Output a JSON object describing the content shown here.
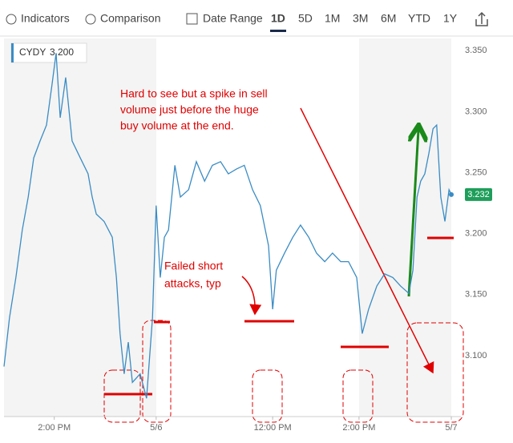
{
  "toolbar": {
    "items": [
      "Indicators",
      "Comparison",
      "Date Range",
      "1D",
      "5D",
      "1M",
      "3M",
      "6M",
      "YTD",
      "1Y"
    ]
  },
  "chart_data": {
    "type": "line",
    "legend": {
      "ticker": "CYDY",
      "price": "3.200"
    },
    "x": [
      0,
      1.2,
      2.6,
      4,
      5.3,
      6.5,
      7.9,
      9.3,
      10.5,
      11.4,
      12.3,
      13.5,
      14.9,
      16.7,
      18.4,
      19.3,
      20.2,
      21.9,
      23.7,
      24.6,
      25.4,
      26.3,
      27.2,
      28.1,
      29.8,
      31.2,
      32.5,
      33.3,
      34.2,
      35.1,
      36,
      37.4,
      38.6,
      40.4,
      42.1,
      43.9,
      45.6,
      47.4,
      49.1,
      50.9,
      52.6,
      54.4,
      56.1,
      57.9,
      58.8,
      59.6,
      61.4,
      63.2,
      64.9,
      66.7,
      68.4,
      70.2,
      71.9,
      73.7,
      75.4,
      77.2,
      78.4,
      79.8,
      81.6,
      83.3,
      85.1,
      86.8,
      88.6,
      89.5,
      90.4,
      91.2,
      92.1,
      93,
      93.9,
      94.7,
      95.6,
      96.5,
      97.4,
      97.9
    ],
    "series": [
      {
        "name": "CYDY",
        "color": "#3a8cc4",
        "values": [
          3.091,
          3.131,
          3.164,
          3.203,
          3.23,
          3.262,
          3.276,
          3.289,
          3.322,
          3.348,
          3.295,
          3.328,
          3.276,
          3.262,
          3.249,
          3.23,
          3.216,
          3.21,
          3.197,
          3.164,
          3.118,
          3.085,
          3.111,
          3.078,
          3.085,
          3.065,
          3.131,
          3.223,
          3.164,
          3.197,
          3.203,
          3.256,
          3.23,
          3.236,
          3.259,
          3.243,
          3.256,
          3.259,
          3.249,
          3.253,
          3.256,
          3.236,
          3.223,
          3.19,
          3.138,
          3.17,
          3.184,
          3.197,
          3.207,
          3.197,
          3.184,
          3.177,
          3.184,
          3.177,
          3.177,
          3.164,
          3.118,
          3.138,
          3.157,
          3.167,
          3.164,
          3.157,
          3.151,
          3.17,
          3.23,
          3.243,
          3.249,
          3.266,
          3.286,
          3.289,
          3.23,
          3.21,
          3.236,
          3.232
        ]
      }
    ],
    "last_price": 3.232,
    "xlim": [
      0,
      100
    ],
    "xticks": [
      {
        "value": 11,
        "label": "2:00 PM"
      },
      {
        "value": 33.3,
        "label": "5/6"
      },
      {
        "value": 58.8,
        "label": "12:00 PM"
      },
      {
        "value": 77.7,
        "label": "2:00 PM"
      },
      {
        "value": 97.9,
        "label": "5/7"
      }
    ],
    "ylim": [
      3.05,
      3.36
    ],
    "yticks": [
      {
        "value": 3.1,
        "label": "3.100"
      },
      {
        "value": 3.15,
        "label": "3.150"
      },
      {
        "value": 3.2,
        "label": "3.200"
      },
      {
        "value": 3.25,
        "label": "3.250"
      },
      {
        "value": 3.3,
        "label": "3.300"
      },
      {
        "value": 3.35,
        "label": "3.350"
      }
    ],
    "grid": false,
    "annotations": [
      {
        "lines": [
          "Hard to see but a spike in sell",
          "volume just before the huge",
          "buy volume at the end."
        ]
      },
      {
        "lines": [
          "Failed short",
          "attacks, typ"
        ]
      }
    ]
  }
}
